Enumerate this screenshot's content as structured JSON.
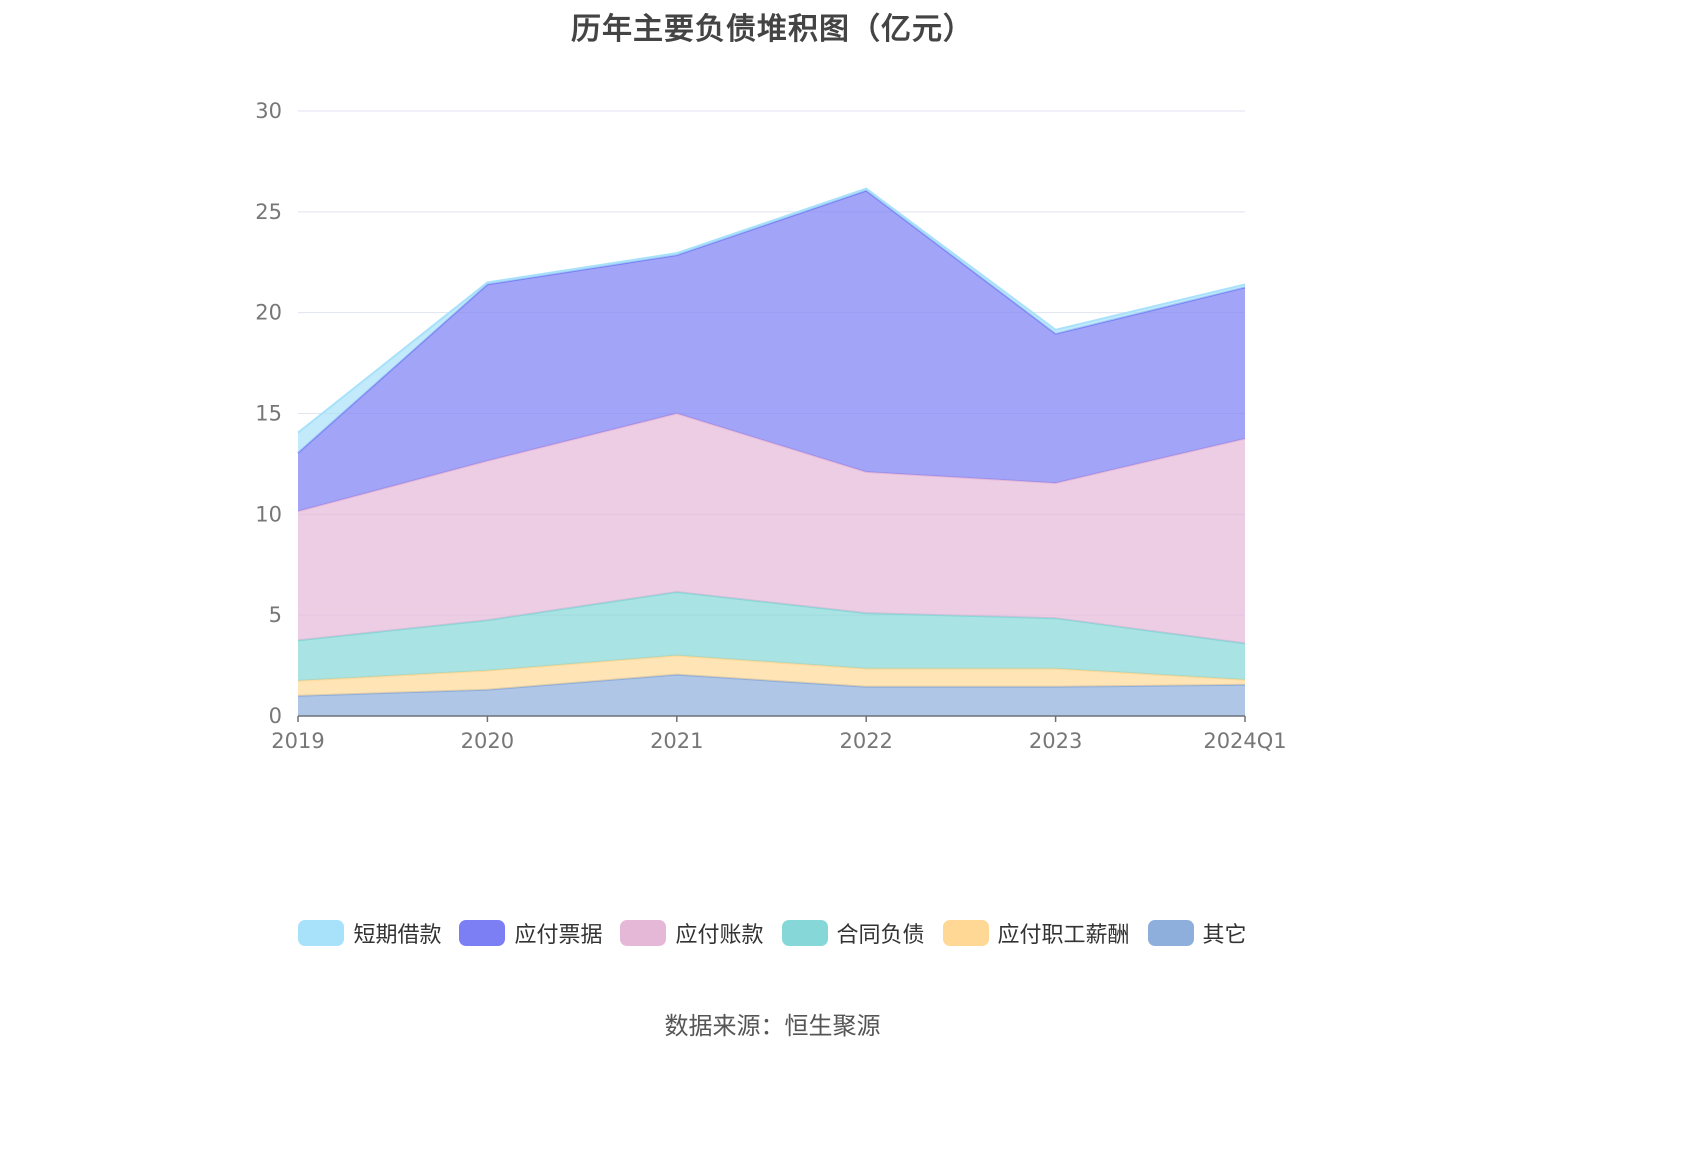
{
  "source_text": "数据来源：恒生聚源",
  "chart_data": {
    "type": "area",
    "stacked": true,
    "title": "历年主要负债堆积图（亿元）",
    "categories": [
      "2019",
      "2020",
      "2021",
      "2022",
      "2023",
      "2024Q1"
    ],
    "ylim": [
      0,
      30
    ],
    "yticks": [
      0,
      5,
      10,
      15,
      20,
      25,
      30
    ],
    "grid": true,
    "legend_position": "bottom",
    "series": [
      {
        "name": "其它",
        "color": "#8eaedb",
        "values": [
          1.0,
          1.3,
          2.05,
          1.45,
          1.45,
          1.55
        ]
      },
      {
        "name": "应付职工薪酬",
        "color": "#ffd896",
        "values": [
          0.75,
          0.95,
          0.95,
          0.9,
          0.9,
          0.25
        ]
      },
      {
        "name": "合同负债",
        "color": "#86d7d7",
        "values": [
          2.0,
          2.5,
          3.15,
          2.75,
          2.5,
          1.8
        ]
      },
      {
        "name": "应付账款",
        "color": "#e6b8d8",
        "values": [
          6.4,
          7.9,
          8.85,
          7.0,
          6.7,
          10.15
        ]
      },
      {
        "name": "应付票据",
        "color": "#7b7ff3",
        "values": [
          2.9,
          8.75,
          7.85,
          13.95,
          7.4,
          7.5
        ]
      },
      {
        "name": "短期借款",
        "color": "#a8e1fa",
        "values": [
          1.0,
          0.1,
          0.1,
          0.1,
          0.2,
          0.15
        ]
      }
    ]
  }
}
